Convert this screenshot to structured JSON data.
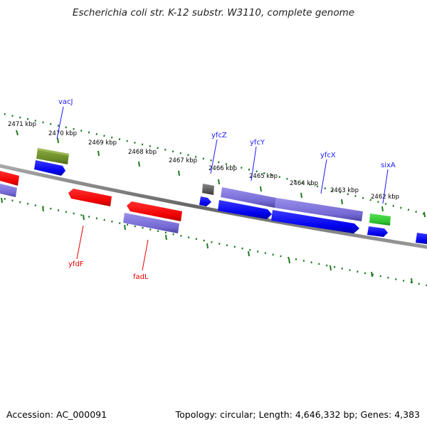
{
  "title": "Escherichia coli str. K-12 substr. W3110, complete genome",
  "footer": {
    "accession": "Accession: AC_000091",
    "summary": "Topology: circular; Length: 4,646,332 bp; Genes: 4,383"
  },
  "map": {
    "kbp_labels": [
      "2471 kbp",
      "2470 kbp",
      "2469 kbp",
      "2468 kbp",
      "2467 kbp",
      "2466 kbp",
      "2465 kbp",
      "2464 kbp",
      "2463 kbp",
      "2462 kbp"
    ],
    "gene_labels": [
      "vacJ",
      "yfcZ",
      "yfcY",
      "yfcX",
      "sixA",
      "yfdF",
      "fadL"
    ],
    "colors": {
      "forward": "#0000ff",
      "reverse": "#ff0000",
      "lavender": "#7b6fd8",
      "olive": "#6f8e2a",
      "green": "#33cc33",
      "gray": "#555555",
      "backbone": "#777777",
      "ticks": "#1f7a1f",
      "label_blue": "#1a1aff",
      "label_red": "#e60000"
    }
  }
}
